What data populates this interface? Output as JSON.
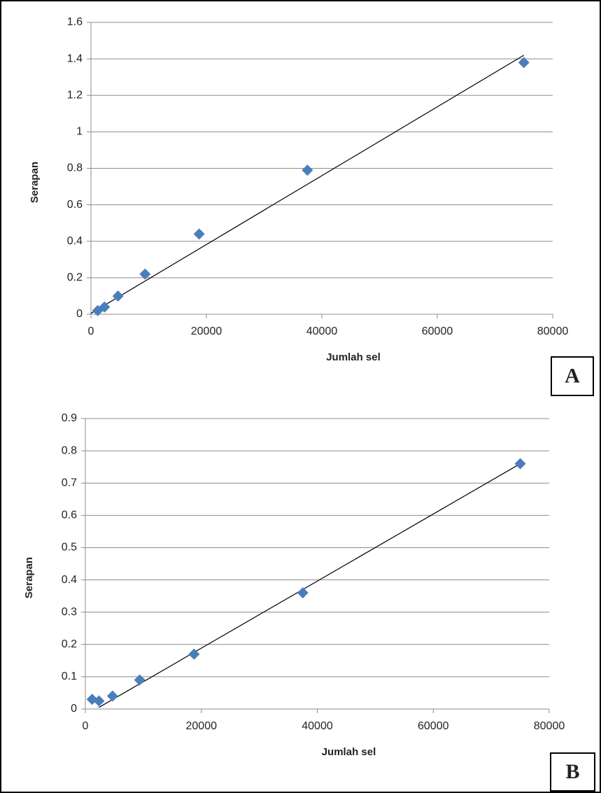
{
  "chart_data": [
    {
      "type": "scatter",
      "panel_label": "A",
      "x_label": "Jumlah sel",
      "y_label": "Serapan",
      "x": [
        1172,
        2344,
        4688,
        9375,
        18750,
        37500,
        75000
      ],
      "values": [
        0.02,
        0.04,
        0.1,
        0.22,
        0.44,
        0.79,
        1.38
      ],
      "color": "#4a7ebb",
      "trendline": {
        "x": [
          0,
          75000
        ],
        "values": [
          0.005,
          1.42
        ]
      },
      "xlim": [
        0,
        80000
      ],
      "xticks": [
        0,
        20000,
        40000,
        60000,
        80000
      ],
      "ylim": [
        0,
        1.6
      ],
      "yticks": [
        0,
        0.2,
        0.4,
        0.6,
        0.8,
        1,
        1.2,
        1.4,
        1.6
      ],
      "grid": true
    },
    {
      "type": "scatter",
      "panel_label": "B",
      "x_label": "Jumlah sel",
      "y_label": "Serapan",
      "x": [
        1172,
        2344,
        4688,
        9375,
        18750,
        37500,
        75000
      ],
      "values": [
        0.03,
        0.025,
        0.04,
        0.09,
        0.17,
        0.36,
        0.76
      ],
      "color": "#4a7ebb",
      "trendline": {
        "x": [
          2344,
          75000
        ],
        "values": [
          0.005,
          0.76
        ]
      },
      "xlim": [
        0,
        80000
      ],
      "xticks": [
        0,
        20000,
        40000,
        60000,
        80000
      ],
      "ylim": [
        0,
        0.9
      ],
      "yticks": [
        0,
        0.1,
        0.2,
        0.3,
        0.4,
        0.5,
        0.6,
        0.7,
        0.8,
        0.9
      ],
      "grid": true
    }
  ]
}
